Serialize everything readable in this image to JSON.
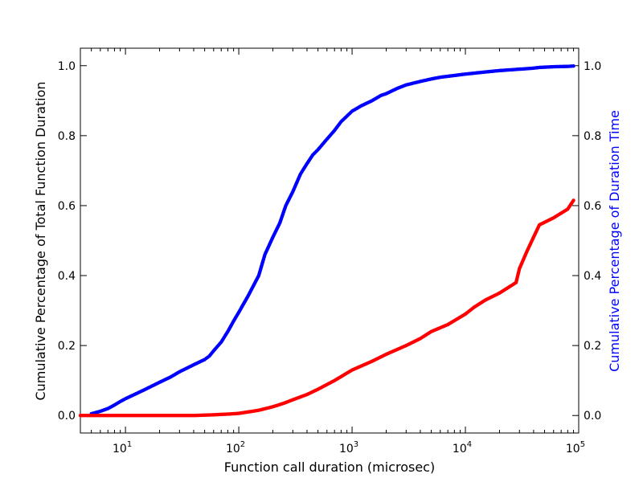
{
  "chart_data": {
    "type": "scatter",
    "title": "",
    "xlabel": "Function call duration (microsec)",
    "ylabel_left": "Cumulative Percentage of Total Function Duration",
    "ylabel_right": "Cumulative Percentage of Duration Time",
    "x_scale": "log",
    "xlim": [
      4,
      100000
    ],
    "x_ticks": [
      10,
      100,
      1000,
      10000,
      100000
    ],
    "x_tick_labels": {
      "base": [
        "10",
        "10",
        "10",
        "10",
        "10"
      ],
      "exp": [
        "1",
        "2",
        "3",
        "4",
        "5"
      ]
    },
    "ylim_left": [
      -0.05,
      1.05
    ],
    "ylim_right": [
      -0.05,
      1.05
    ],
    "y_ticks": [
      0.0,
      0.2,
      0.4,
      0.6,
      0.8,
      1.0
    ],
    "y_tick_labels_left": [
      "0.0",
      "0.2",
      "0.4",
      "0.6",
      "0.8",
      "1.0"
    ],
    "y_tick_labels_right": [
      "0.0",
      "0.2",
      "0.4",
      "0.6",
      "0.8",
      "1.0"
    ],
    "grid": false,
    "colors": {
      "blue_series": "#0000ff",
      "red_series": "#ff0000",
      "right_axis_label": "#0000ff"
    },
    "series": [
      {
        "axis": "right",
        "color": "#0000ff",
        "x": [
          5,
          6,
          7,
          8,
          9,
          10,
          12,
          15,
          20,
          25,
          30,
          40,
          50,
          55,
          60,
          70,
          80,
          90,
          100,
          120,
          150,
          170,
          200,
          230,
          260,
          300,
          350,
          400,
          450,
          500,
          600,
          700,
          800,
          1000,
          1200,
          1500,
          1800,
          2000,
          2500,
          3000,
          4000,
          5000,
          6000,
          8000,
          10000,
          15000,
          20000,
          30000,
          40000,
          45000,
          60000,
          80000,
          90000
        ],
        "y": [
          0.005,
          0.012,
          0.02,
          0.03,
          0.04,
          0.048,
          0.06,
          0.075,
          0.095,
          0.11,
          0.125,
          0.145,
          0.16,
          0.17,
          0.185,
          0.21,
          0.24,
          0.27,
          0.295,
          0.34,
          0.4,
          0.46,
          0.51,
          0.55,
          0.6,
          0.64,
          0.69,
          0.72,
          0.745,
          0.76,
          0.79,
          0.815,
          0.84,
          0.87,
          0.885,
          0.9,
          0.915,
          0.92,
          0.935,
          0.945,
          0.955,
          0.962,
          0.967,
          0.972,
          0.976,
          0.982,
          0.986,
          0.99,
          0.993,
          0.995,
          0.997,
          0.998,
          0.999
        ]
      },
      {
        "axis": "left",
        "color": "#ff0000",
        "x": [
          4,
          10,
          20,
          40,
          60,
          80,
          100,
          120,
          150,
          200,
          250,
          300,
          400,
          500,
          700,
          1000,
          1500,
          2000,
          3000,
          4000,
          5000,
          7000,
          10000,
          12000,
          15000,
          20000,
          25000,
          28000,
          30000,
          35000,
          40000,
          45000,
          60000,
          80000,
          90000
        ],
        "y": [
          0.0,
          0.0,
          0.0,
          0.0,
          0.002,
          0.004,
          0.006,
          0.01,
          0.015,
          0.025,
          0.035,
          0.045,
          0.06,
          0.075,
          0.1,
          0.13,
          0.155,
          0.175,
          0.2,
          0.22,
          0.24,
          0.26,
          0.29,
          0.31,
          0.33,
          0.35,
          0.37,
          0.38,
          0.42,
          0.47,
          0.51,
          0.545,
          0.565,
          0.59,
          0.615
        ]
      }
    ]
  }
}
